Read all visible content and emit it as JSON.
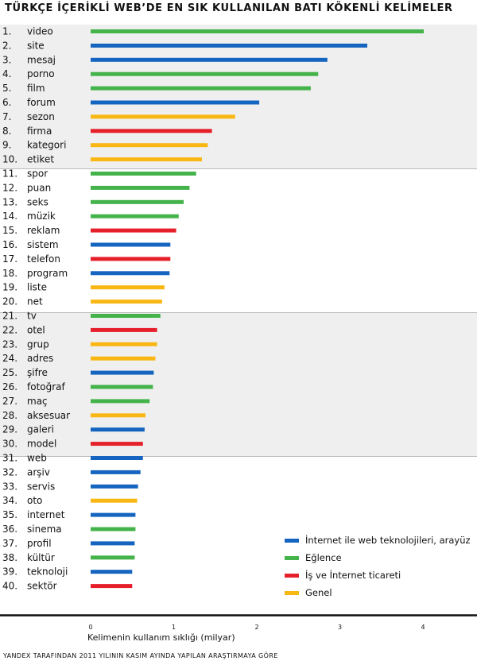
{
  "chart_data": {
    "type": "bar",
    "orientation": "horizontal",
    "title": "TÜRKÇE İÇERİKLİ WEB’DE EN SIK KULLANILAN BATI KÖKENLİ KELİMELER",
    "xlabel": "Kelimenin kullanım sıklığı (milyar)",
    "xlim": [
      0,
      4.6
    ],
    "x_ticks": [
      "0",
      "1",
      "2",
      "3",
      "4"
    ],
    "source": "YANDEX TARAFINDAN 2011 YILININ KASIM AYINDA YAPILAN ARAŞTIRMAYA GÖRE",
    "legend_position": "bottom-right",
    "categories_legend": [
      {
        "key": "internet",
        "label": "İnternet ile web teknolojileri, arayüz",
        "color": "#1565c0"
      },
      {
        "key": "eglence",
        "label": "Eğlence",
        "color": "#43b34a"
      },
      {
        "key": "is",
        "label": "İş ve İnternet ticareti",
        "color": "#e5202b"
      },
      {
        "key": "genel",
        "label": "Genel",
        "color": "#f9b713"
      }
    ],
    "rows": [
      {
        "rank": "1.",
        "word": "video",
        "value": 4.01,
        "category": "eglence"
      },
      {
        "rank": "2.",
        "word": "site",
        "value": 3.33,
        "category": "internet"
      },
      {
        "rank": "3.",
        "word": "mesaj",
        "value": 2.85,
        "category": "internet"
      },
      {
        "rank": "4.",
        "word": "porno",
        "value": 2.74,
        "category": "eglence"
      },
      {
        "rank": "5.",
        "word": "film",
        "value": 2.65,
        "category": "eglence"
      },
      {
        "rank": "6.",
        "word": "forum",
        "value": 2.03,
        "category": "internet"
      },
      {
        "rank": "7.",
        "word": "sezon",
        "value": 1.74,
        "category": "genel"
      },
      {
        "rank": "8.",
        "word": "firma",
        "value": 1.46,
        "category": "is"
      },
      {
        "rank": "9.",
        "word": "kategori",
        "value": 1.41,
        "category": "genel"
      },
      {
        "rank": "10.",
        "word": "etiket",
        "value": 1.34,
        "category": "genel"
      },
      {
        "rank": "11.",
        "word": "spor",
        "value": 1.27,
        "category": "eglence"
      },
      {
        "rank": "12.",
        "word": "puan",
        "value": 1.19,
        "category": "eglence"
      },
      {
        "rank": "13.",
        "word": "seks",
        "value": 1.12,
        "category": "eglence"
      },
      {
        "rank": "14.",
        "word": "müzik",
        "value": 1.06,
        "category": "eglence"
      },
      {
        "rank": "15.",
        "word": "reklam",
        "value": 1.03,
        "category": "is"
      },
      {
        "rank": "16.",
        "word": "sistem",
        "value": 0.96,
        "category": "internet"
      },
      {
        "rank": "17.",
        "word": "telefon",
        "value": 0.96,
        "category": "is"
      },
      {
        "rank": "18.",
        "word": "program",
        "value": 0.95,
        "category": "internet"
      },
      {
        "rank": "19.",
        "word": "liste",
        "value": 0.89,
        "category": "genel"
      },
      {
        "rank": "20.",
        "word": "net",
        "value": 0.86,
        "category": "genel"
      },
      {
        "rank": "21.",
        "word": "tv",
        "value": 0.84,
        "category": "eglence"
      },
      {
        "rank": "22.",
        "word": "otel",
        "value": 0.8,
        "category": "is"
      },
      {
        "rank": "23.",
        "word": "grup",
        "value": 0.8,
        "category": "genel"
      },
      {
        "rank": "24.",
        "word": "adres",
        "value": 0.78,
        "category": "genel"
      },
      {
        "rank": "25.",
        "word": "şifre",
        "value": 0.76,
        "category": "internet"
      },
      {
        "rank": "26.",
        "word": "fotoğraf",
        "value": 0.75,
        "category": "eglence"
      },
      {
        "rank": "27.",
        "word": "maç",
        "value": 0.71,
        "category": "eglence"
      },
      {
        "rank": "28.",
        "word": "aksesuar",
        "value": 0.66,
        "category": "genel"
      },
      {
        "rank": "29.",
        "word": "galeri",
        "value": 0.65,
        "category": "internet"
      },
      {
        "rank": "30.",
        "word": "model",
        "value": 0.63,
        "category": "is"
      },
      {
        "rank": "31.",
        "word": "web",
        "value": 0.63,
        "category": "internet"
      },
      {
        "rank": "32.",
        "word": "arşiv",
        "value": 0.6,
        "category": "internet"
      },
      {
        "rank": "33.",
        "word": "servis",
        "value": 0.57,
        "category": "internet"
      },
      {
        "rank": "34.",
        "word": "oto",
        "value": 0.56,
        "category": "genel"
      },
      {
        "rank": "35.",
        "word": "internet",
        "value": 0.54,
        "category": "internet"
      },
      {
        "rank": "36.",
        "word": "sinema",
        "value": 0.54,
        "category": "eglence"
      },
      {
        "rank": "37.",
        "word": "profil",
        "value": 0.53,
        "category": "internet"
      },
      {
        "rank": "38.",
        "word": "kültür",
        "value": 0.53,
        "category": "eglence"
      },
      {
        "rank": "39.",
        "word": "teknoloji",
        "value": 0.5,
        "category": "internet"
      },
      {
        "rank": "40.",
        "word": "sektör",
        "value": 0.5,
        "category": "is"
      }
    ]
  }
}
